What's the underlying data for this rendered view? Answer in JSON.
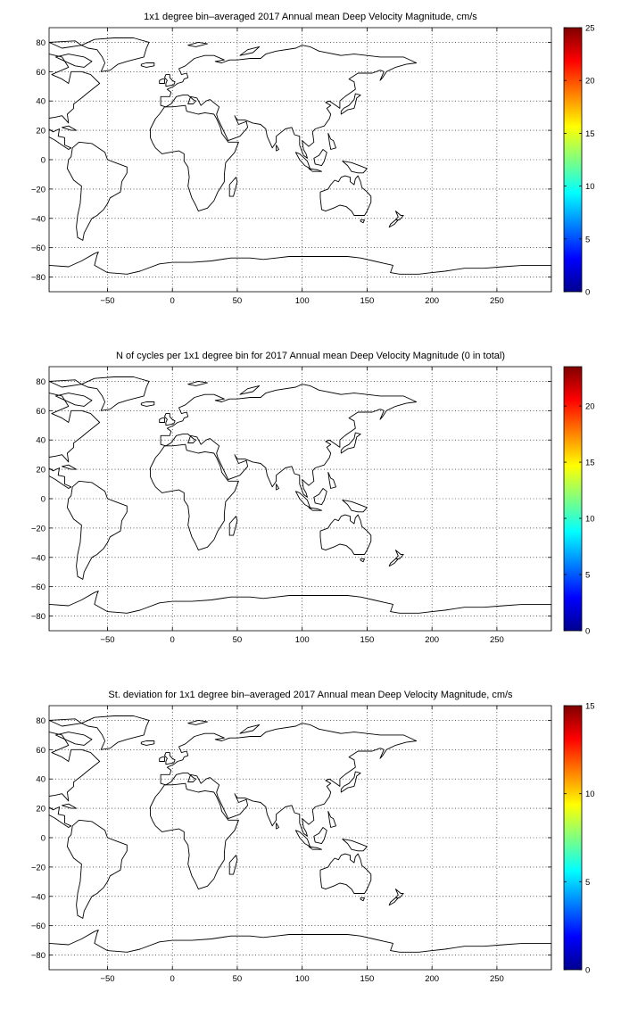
{
  "panels": [
    {
      "title": "1x1 degree bin–averaged 2017 Annual mean Deep Velocity Magnitude, cm/s",
      "colorbar": {
        "min": 0,
        "max": 25,
        "ticks": [
          0,
          5,
          10,
          15,
          20,
          25
        ]
      }
    },
    {
      "title": "N of cycles per 1x1 degree bin for 2017 Annual mean Deep Velocity Magnitude (0 in total)",
      "colorbar": {
        "min": 0,
        "max": 23.5,
        "ticks": [
          0,
          5,
          10,
          15,
          20
        ]
      }
    },
    {
      "title": "St. deviation for 1x1 degree bin–averaged 2017 Annual mean Deep Velocity Magnitude, cm/s",
      "colorbar": {
        "min": 0,
        "max": 15,
        "ticks": [
          0,
          5,
          10,
          15
        ]
      }
    }
  ],
  "map": {
    "xlim": [
      -95,
      292
    ],
    "ylim": [
      -90,
      90
    ],
    "xticks": [
      -50,
      0,
      50,
      100,
      150,
      200,
      250
    ],
    "yticks": [
      -80,
      -60,
      -40,
      -20,
      0,
      20,
      40,
      60,
      80
    ],
    "grid": true,
    "colormap": "jet",
    "coastline_color": "#000000"
  }
}
